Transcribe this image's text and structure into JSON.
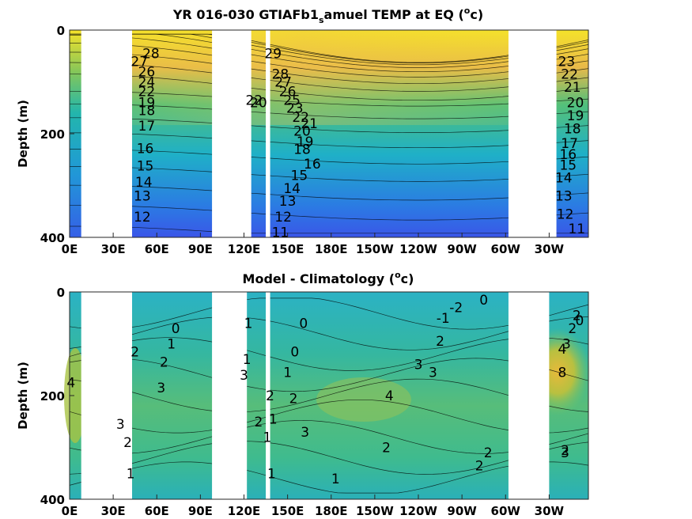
{
  "chart_data": [
    {
      "type": "heatmap",
      "title": "YR 016-030 GTIAFb1_samuel TEMP at EQ (°c)",
      "title_parts": {
        "pre": "YR 016-030 GTIAFb1",
        "sub": "s",
        "post": "amuel TEMP at EQ (",
        "sup": "o",
        "end": "c)"
      },
      "ylabel": "Depth (m)",
      "xlabel": "",
      "x_tick_labels": [
        "0E",
        "30E",
        "60E",
        "90E",
        "120E",
        "150E",
        "180E",
        "150W",
        "120W",
        "90W",
        "60W",
        "30W"
      ],
      "y_tick_labels": [
        "0",
        "200",
        "400"
      ],
      "ylim": [
        0,
        400
      ],
      "y_reversed": true,
      "colormap": "parula",
      "land_gaps": [
        [
          8,
          43
        ],
        [
          98,
          125
        ],
        [
          135,
          138
        ],
        [
          302,
          335
        ]
      ],
      "contour_labels": [
        {
          "text": "29",
          "lon": 140,
          "depth": 45
        },
        {
          "text": "28",
          "lon": 56,
          "depth": 45
        },
        {
          "text": "28",
          "lon": 145,
          "depth": 85
        },
        {
          "text": "27",
          "lon": 48,
          "depth": 60
        },
        {
          "text": "26",
          "lon": 53,
          "depth": 80
        },
        {
          "text": "27",
          "lon": 147,
          "depth": 100
        },
        {
          "text": "26",
          "lon": 150,
          "depth": 118
        },
        {
          "text": "25",
          "lon": 153,
          "depth": 135
        },
        {
          "text": "23",
          "lon": 155,
          "depth": 150
        },
        {
          "text": "22",
          "lon": 159,
          "depth": 168
        },
        {
          "text": "21",
          "lon": 165,
          "depth": 180
        },
        {
          "text": "20",
          "lon": 160,
          "depth": 195
        },
        {
          "text": "19",
          "lon": 162,
          "depth": 215
        },
        {
          "text": "18",
          "lon": 160,
          "depth": 230
        },
        {
          "text": "16",
          "lon": 167,
          "depth": 258
        },
        {
          "text": "15",
          "lon": 158,
          "depth": 280
        },
        {
          "text": "14",
          "lon": 153,
          "depth": 305
        },
        {
          "text": "13",
          "lon": 150,
          "depth": 330
        },
        {
          "text": "12",
          "lon": 147,
          "depth": 360
        },
        {
          "text": "11",
          "lon": 145,
          "depth": 390
        },
        {
          "text": "24",
          "lon": 53,
          "depth": 100
        },
        {
          "text": "22",
          "lon": 53,
          "depth": 118
        },
        {
          "text": "19",
          "lon": 53,
          "depth": 140
        },
        {
          "text": "18",
          "lon": 53,
          "depth": 155
        },
        {
          "text": "17",
          "lon": 53,
          "depth": 185
        },
        {
          "text": "16",
          "lon": 52,
          "depth": 228
        },
        {
          "text": "15",
          "lon": 52,
          "depth": 262
        },
        {
          "text": "14",
          "lon": 51,
          "depth": 293
        },
        {
          "text": "13",
          "lon": 50,
          "depth": 320
        },
        {
          "text": "12",
          "lon": 50,
          "depth": 360
        },
        {
          "text": "22",
          "lon": 127,
          "depth": 135
        },
        {
          "text": "20",
          "lon": 130,
          "depth": 140
        },
        {
          "text": "23",
          "lon": 342,
          "depth": 60
        },
        {
          "text": "22",
          "lon": 344,
          "depth": 85
        },
        {
          "text": "21",
          "lon": 346,
          "depth": 110
        },
        {
          "text": "20",
          "lon": 348,
          "depth": 140
        },
        {
          "text": "19",
          "lon": 348,
          "depth": 165
        },
        {
          "text": "18",
          "lon": 346,
          "depth": 190
        },
        {
          "text": "17",
          "lon": 344,
          "depth": 218
        },
        {
          "text": "16",
          "lon": 343,
          "depth": 240
        },
        {
          "text": "15",
          "lon": 343,
          "depth": 260
        },
        {
          "text": "14",
          "lon": 340,
          "depth": 285
        },
        {
          "text": "13",
          "lon": 340,
          "depth": 320
        },
        {
          "text": "12",
          "lon": 341,
          "depth": 355
        },
        {
          "text": "11",
          "lon": 349,
          "depth": 383
        }
      ]
    },
    {
      "type": "heatmap",
      "title": "Model - Climatology (°c)",
      "title_parts": {
        "pre": "Model - Climatology (",
        "sup": "o",
        "end": "c)"
      },
      "ylabel": "Depth (m)",
      "xlabel": "",
      "x_tick_labels": [
        "0E",
        "30E",
        "60E",
        "90E",
        "120E",
        "150E",
        "180E",
        "150W",
        "120W",
        "90W",
        "60W",
        "30W"
      ],
      "y_tick_labels": [
        "0",
        "200",
        "400"
      ],
      "ylim": [
        0,
        400
      ],
      "y_reversed": true,
      "colormap": "parula",
      "land_gaps": [
        [
          8,
          43
        ],
        [
          98,
          122
        ],
        [
          135,
          138
        ],
        [
          302,
          330
        ]
      ],
      "contour_labels": [
        {
          "text": "0",
          "lon": 73,
          "depth": 70
        },
        {
          "text": "1",
          "lon": 70,
          "depth": 100
        },
        {
          "text": "2",
          "lon": 45,
          "depth": 115
        },
        {
          "text": "2",
          "lon": 65,
          "depth": 135
        },
        {
          "text": "3",
          "lon": 63,
          "depth": 185
        },
        {
          "text": "4",
          "lon": 1,
          "depth": 175
        },
        {
          "text": "3",
          "lon": 35,
          "depth": 255
        },
        {
          "text": "2",
          "lon": 40,
          "depth": 290
        },
        {
          "text": "1",
          "lon": 42,
          "depth": 350
        },
        {
          "text": "1",
          "lon": 123,
          "depth": 60
        },
        {
          "text": "0",
          "lon": 161,
          "depth": 60
        },
        {
          "text": "0",
          "lon": 155,
          "depth": 115
        },
        {
          "text": "1",
          "lon": 150,
          "depth": 155
        },
        {
          "text": "2",
          "lon": 154,
          "depth": 205
        },
        {
          "text": "3",
          "lon": 162,
          "depth": 270
        },
        {
          "text": "2",
          "lon": 138,
          "depth": 200
        },
        {
          "text": "2",
          "lon": 130,
          "depth": 250
        },
        {
          "text": "1",
          "lon": 140,
          "depth": 245
        },
        {
          "text": "1",
          "lon": 136,
          "depth": 280
        },
        {
          "text": "1",
          "lon": 139,
          "depth": 350
        },
        {
          "text": "3",
          "lon": 120,
          "depth": 160
        },
        {
          "text": "1",
          "lon": 122,
          "depth": 130
        },
        {
          "text": "-2",
          "lon": 266,
          "depth": 30
        },
        {
          "text": "-1",
          "lon": 257,
          "depth": 50
        },
        {
          "text": "0",
          "lon": 285,
          "depth": 15
        },
        {
          "text": "2",
          "lon": 255,
          "depth": 95
        },
        {
          "text": "3",
          "lon": 240,
          "depth": 140
        },
        {
          "text": "3",
          "lon": 250,
          "depth": 155
        },
        {
          "text": "4",
          "lon": 220,
          "depth": 200
        },
        {
          "text": "2",
          "lon": 218,
          "depth": 300
        },
        {
          "text": "1",
          "lon": 183,
          "depth": 360
        },
        {
          "text": "2",
          "lon": 282,
          "depth": 335
        },
        {
          "text": "2",
          "lon": 288,
          "depth": 310
        },
        {
          "text": "2",
          "lon": 349,
          "depth": 45
        },
        {
          "text": "0",
          "lon": 351,
          "depth": 55
        },
        {
          "text": "2",
          "lon": 346,
          "depth": 70
        },
        {
          "text": "3",
          "lon": 342,
          "depth": 100
        },
        {
          "text": "4",
          "lon": 339,
          "depth": 110
        },
        {
          "text": "8",
          "lon": 339,
          "depth": 155
        },
        {
          "text": "3",
          "lon": 341,
          "depth": 310
        },
        {
          "text": "2",
          "lon": 341,
          "depth": 305
        }
      ]
    }
  ]
}
